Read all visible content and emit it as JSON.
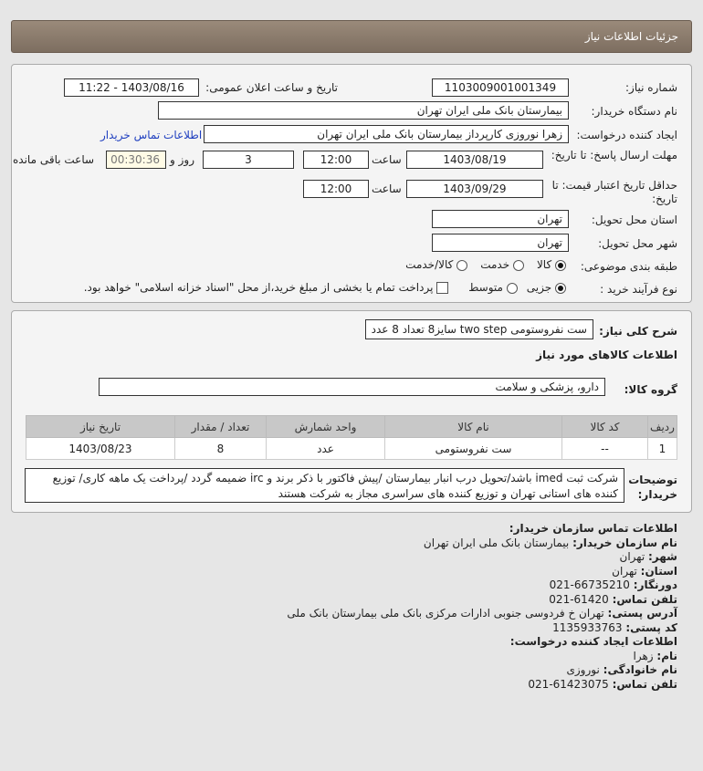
{
  "header": {
    "title": "جزئيات اطلاعات نياز"
  },
  "form": {
    "need_number_label": "شماره نیاز:",
    "need_number": "1103009001001349",
    "announce_label": "تاریخ و ساعت اعلان عمومی:",
    "announce_value": "1403/08/16 - 11:22",
    "buyer_org_label": "نام دستگاه خریدار:",
    "buyer_org": "بیمارستان بانک ملی ایران تهران",
    "creator_label": "ایجاد کننده درخواست:",
    "creator": "زهرا نوروزی کارپرداز بیمارستان بانک ملی ایران تهران",
    "contact_link": "اطلاعات تماس خریدار",
    "deadline_label": "مهلت ارسال پاسخ: تا تاریخ:",
    "deadline_date": "1403/08/19",
    "time_label": "ساعت",
    "deadline_time": "12:00",
    "days": "3",
    "days_label": "روز و",
    "remaining": "00:30:36",
    "remaining_label": "ساعت باقی مانده",
    "validity_label": "حداقل تاریخ اعتبار قیمت: تا تاریخ:",
    "validity_date": "1403/09/29",
    "validity_time": "12:00",
    "province_label": "استان محل تحویل:",
    "province": "تهران",
    "city_label": "شهر محل تحویل:",
    "city": "تهران",
    "category_label": "طبقه بندی موضوعی:",
    "category_options": [
      "کالا",
      "خدمت",
      "کالا/خدمت"
    ],
    "category_selected": "کالا",
    "process_label": "نوع فرآیند خرید :",
    "process_options": [
      "جزیی",
      "متوسط"
    ],
    "process_selected": "جزیی",
    "payment_note": "پرداخت تمام یا بخشی از مبلغ خرید،از محل \"اسناد خزانه اسلامی\" خواهد بود."
  },
  "needs": {
    "summary_label": "شرح کلی نیاز:",
    "summary": "ست نفروستومی two step سایز8 تعداد 8 عدد",
    "goods_title": "اطلاعات کالاهای مورد نیاز",
    "group_label": "گروه کالا:",
    "group": "دارو، پزشکی و سلامت",
    "columns": [
      "ردیف",
      "کد کالا",
      "نام کالا",
      "واحد شمارش",
      "تعداد / مقدار",
      "تاریخ نیاز"
    ],
    "rows": [
      [
        "1",
        "--",
        "ست نفروستومی",
        "عدد",
        "8",
        "1403/08/23"
      ]
    ],
    "notes_label": "توضیحات خریدار:",
    "notes": "شرکت ثبت imed باشد/تحویل درب انبار بیمارستان /پیش فاکتور با ذکر برند و irc ضمیمه گردد /پرداخت یک ماهه کاری/ توزیع کننده های استانی تهران و توزیع کننده های سراسری مجاز به شرکت هستند"
  },
  "contact": {
    "title": "اطلاعات تماس سازمان خریدار:",
    "items": [
      {
        "k": "نام سازمان خریدار:",
        "v": "بیمارستان بانک ملی ایران تهران"
      },
      {
        "k": "شهر:",
        "v": "تهران"
      },
      {
        "k": "استان:",
        "v": "تهران"
      },
      {
        "k": "دورنگار:",
        "v": "66735210-021"
      },
      {
        "k": "تلفن تماس:",
        "v": "61420-021"
      },
      {
        "k": "آدرس پستی:",
        "v": "تهران خ فردوسی جنوبی ادارات مرکزی بانک ملی بیمارستان بانک ملی"
      },
      {
        "k": "کد پستی:",
        "v": "1135933763"
      }
    ],
    "creator_title": "اطلاعات ایجاد کننده درخواست:",
    "creator_items": [
      {
        "k": "نام:",
        "v": "زهرا"
      },
      {
        "k": "نام خانوادگی:",
        "v": "نوروزی"
      },
      {
        "k": "تلفن تماس:",
        "v": "61423075-021"
      }
    ]
  }
}
